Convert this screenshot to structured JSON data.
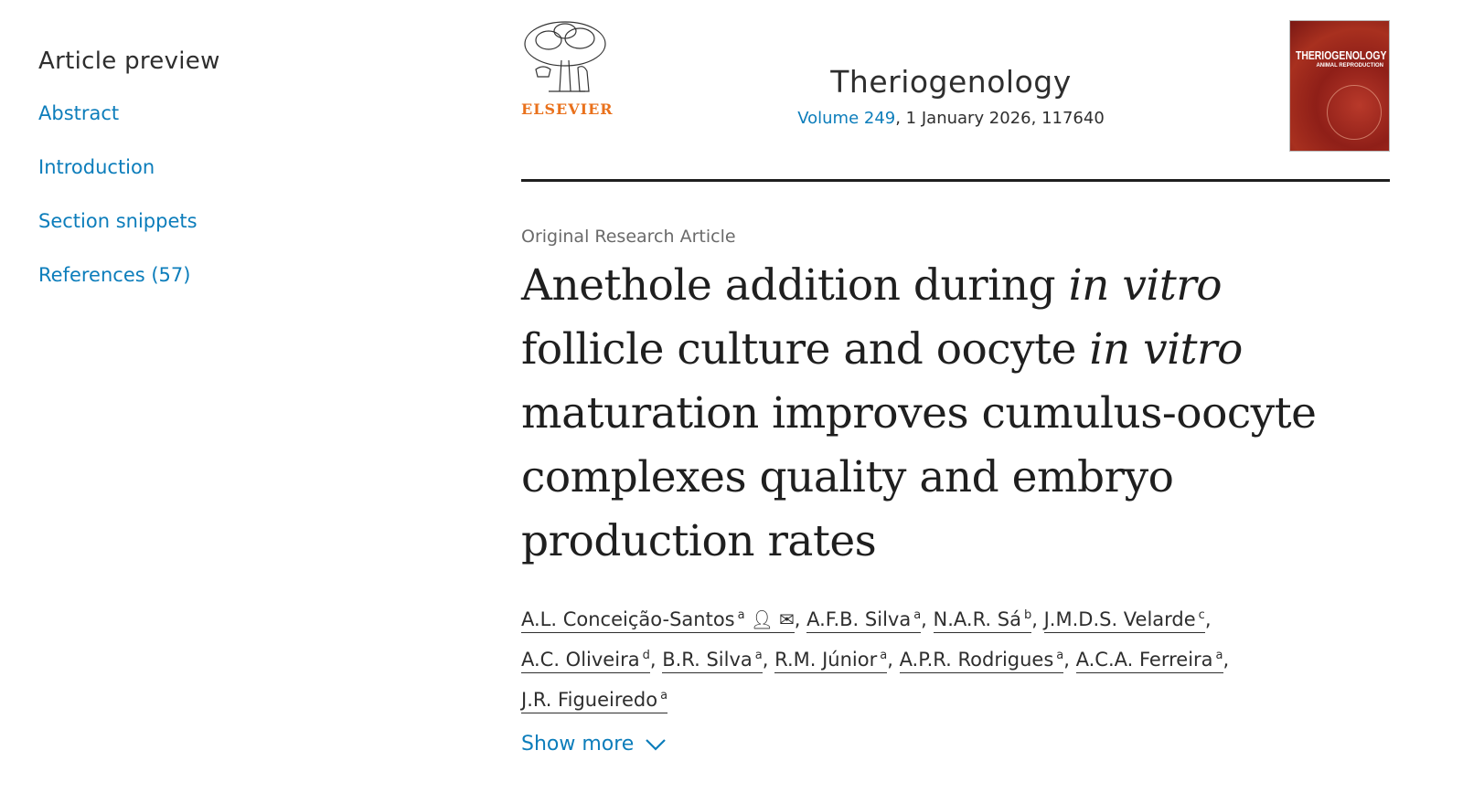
{
  "nav": {
    "heading": "Article preview",
    "items": [
      {
        "label": "Abstract"
      },
      {
        "label": "Introduction"
      },
      {
        "label": "Section snippets"
      },
      {
        "label": "References (57)"
      }
    ]
  },
  "header": {
    "publisher": "ELSEVIER",
    "journal": "Theriogenology",
    "volume_link": "Volume 249",
    "volume_rest": ", 1 January 2026, 117640",
    "cover_title": "THERIOGENOLOGY",
    "cover_subtitle": "ANIMAL REPRODUCTION"
  },
  "article": {
    "type": "Original Research Article",
    "title_parts": [
      "Anethole addition during ",
      "in vitro",
      " follicle culture and oocyte ",
      "in vitro",
      " maturation improves cumulus-oocyte complexes quality and embryo production rates"
    ],
    "authors": [
      {
        "name": "A.L. Conceição-Santos",
        "aff": "a"
      },
      {
        "name": "A.F.B. Silva",
        "aff": "a"
      },
      {
        "name": "N.A.R. Sá",
        "aff": "b"
      },
      {
        "name": "J.M.D.S. Velarde",
        "aff": "c"
      },
      {
        "name": "A.C. Oliveira",
        "aff": "d"
      },
      {
        "name": "B.R. Silva",
        "aff": "a"
      },
      {
        "name": "R.M. Júnior",
        "aff": "a"
      },
      {
        "name": "A.P.R. Rodrigues",
        "aff": "a"
      },
      {
        "name": "A.C.A. Ferreira",
        "aff": "a"
      },
      {
        "name": "J.R. Figueiredo",
        "aff": "a"
      }
    ],
    "show_more": "Show more"
  },
  "colors": {
    "link": "#0c7dbb",
    "publisher": "#e9711c"
  }
}
